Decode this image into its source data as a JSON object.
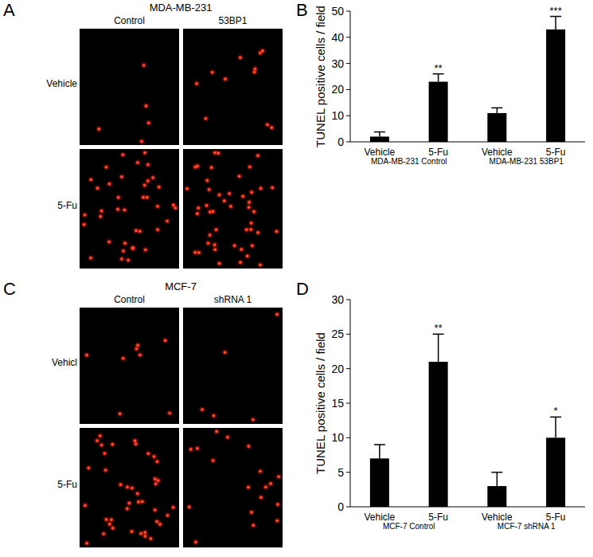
{
  "figure": {
    "panel_labels": [
      "A",
      "B",
      "C",
      "D"
    ],
    "images": [
      {
        "title": "MDA-MB-231",
        "columns": [
          "Control",
          "53BP1"
        ],
        "rows": [
          "Vehicle",
          "5-Fu"
        ]
      },
      {
        "title": "MCF-7",
        "columns": [
          "Control",
          "shRNA 1"
        ],
        "rows": [
          "Vehicl",
          "5-Fu"
        ]
      }
    ]
  },
  "chart_data": [
    {
      "type": "bar",
      "y_label": "TUNEL positive cells / field",
      "categories": [
        "Vehicle",
        "5-Fu",
        "Vehicle",
        "5-Fu"
      ],
      "category_groups": [
        "MDA-MB-231 Control",
        "MDA-MB-231 53BP1"
      ],
      "values": [
        2,
        23,
        11,
        43
      ],
      "errors": [
        1.8,
        3,
        2,
        5
      ],
      "annotations": [
        null,
        "**",
        null,
        "***"
      ],
      "color": "#000000",
      "ylim": [
        0,
        50
      ],
      "yticks": [
        0,
        10,
        20,
        30,
        40,
        50
      ],
      "grid": false
    },
    {
      "type": "bar",
      "y_label": "TUNEL positive cells / field",
      "categories": [
        "Vehicle",
        "5-Fu",
        "Vehicle",
        "5-Fu"
      ],
      "category_groups": [
        "MCF-7 Control",
        "MCF-7 shRNA 1"
      ],
      "values": [
        7,
        21,
        3,
        10
      ],
      "errors": [
        2,
        4,
        2,
        3
      ],
      "annotations": [
        null,
        "**",
        null,
        "*"
      ],
      "color": "#000000",
      "ylim": [
        0,
        30
      ],
      "yticks": [
        0,
        5,
        10,
        15,
        20,
        25,
        30
      ],
      "grid": false
    }
  ]
}
